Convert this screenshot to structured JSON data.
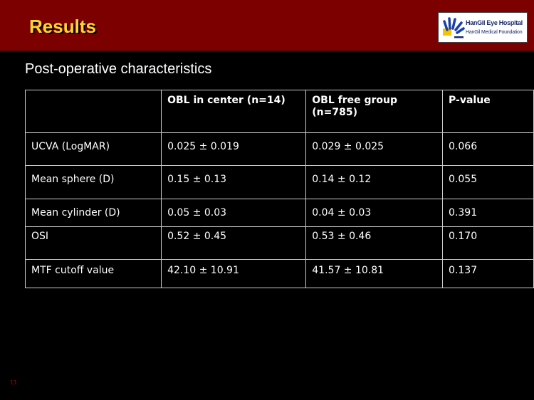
{
  "header": {
    "title": "Results",
    "logo": {
      "name": "HanGil Eye Hospital",
      "sub": "HanGil Medical Foundation"
    }
  },
  "subtitle": "Post-operative characteristics",
  "table": {
    "columns": [
      "",
      "OBL in center (n=14)",
      "OBL free group (n=785)",
      "P-value"
    ],
    "rows": [
      [
        "UCVA (LogMAR)",
        "0.025 ± 0.019",
        "0.029 ± 0.025",
        "0.066"
      ],
      [
        "Mean sphere (D)",
        "0.15 ± 0.13",
        "0.14 ± 0.12",
        "0.055"
      ],
      [
        "Mean cylinder (D)",
        "0.05 ± 0.03",
        "0.04 ± 0.03",
        "0.391"
      ],
      [
        "OSI",
        "0.52 ± 0.45",
        "0.53 ± 0.46",
        "0.170"
      ],
      [
        "MTF cutoff value",
        "42.10 ± 10.91",
        "41.57 ± 10.81",
        "0.137"
      ]
    ]
  },
  "page_number": "11"
}
